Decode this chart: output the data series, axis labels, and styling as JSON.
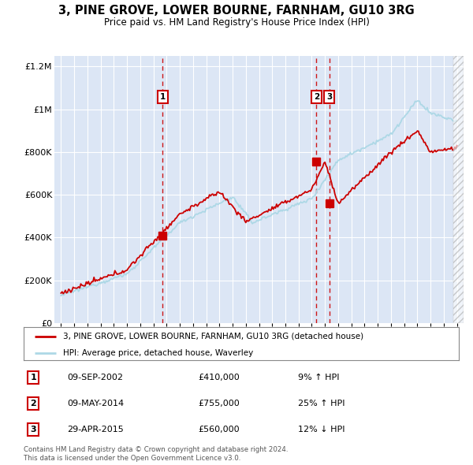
{
  "title": "3, PINE GROVE, LOWER BOURNE, FARNHAM, GU10 3RG",
  "subtitle": "Price paid vs. HM Land Registry's House Price Index (HPI)",
  "legend_house": "3, PINE GROVE, LOWER BOURNE, FARNHAM, GU10 3RG (detached house)",
  "legend_hpi": "HPI: Average price, detached house, Waverley",
  "footer1": "Contains HM Land Registry data © Crown copyright and database right 2024.",
  "footer2": "This data is licensed under the Open Government Licence v3.0.",
  "transactions": [
    {
      "num": "1",
      "date": "09-SEP-2002",
      "price": "£410,000",
      "change": "9% ↑ HPI"
    },
    {
      "num": "2",
      "date": "09-MAY-2014",
      "price": "£755,000",
      "change": "25% ↑ HPI"
    },
    {
      "num": "3",
      "date": "29-APR-2015",
      "price": "£560,000",
      "change": "12% ↓ HPI"
    }
  ],
  "sale_dates": [
    2002.69,
    2014.36,
    2015.33
  ],
  "sale_prices": [
    410000,
    755000,
    560000
  ],
  "hpi_color": "#ADD8E6",
  "house_color": "#CC0000",
  "vline_color": "#CC0000",
  "background_plot": "#DCE6F5",
  "background_fig": "#FFFFFF",
  "grid_color": "#FFFFFF",
  "ylim": [
    0,
    1250000
  ],
  "xlim": [
    1994.5,
    2025.5
  ],
  "yticks": [
    0,
    200000,
    400000,
    600000,
    800000,
    1000000,
    1200000
  ],
  "ytick_labels": [
    "£0",
    "£200K",
    "£400K",
    "£600K",
    "£800K",
    "£1M",
    "£1.2M"
  ]
}
